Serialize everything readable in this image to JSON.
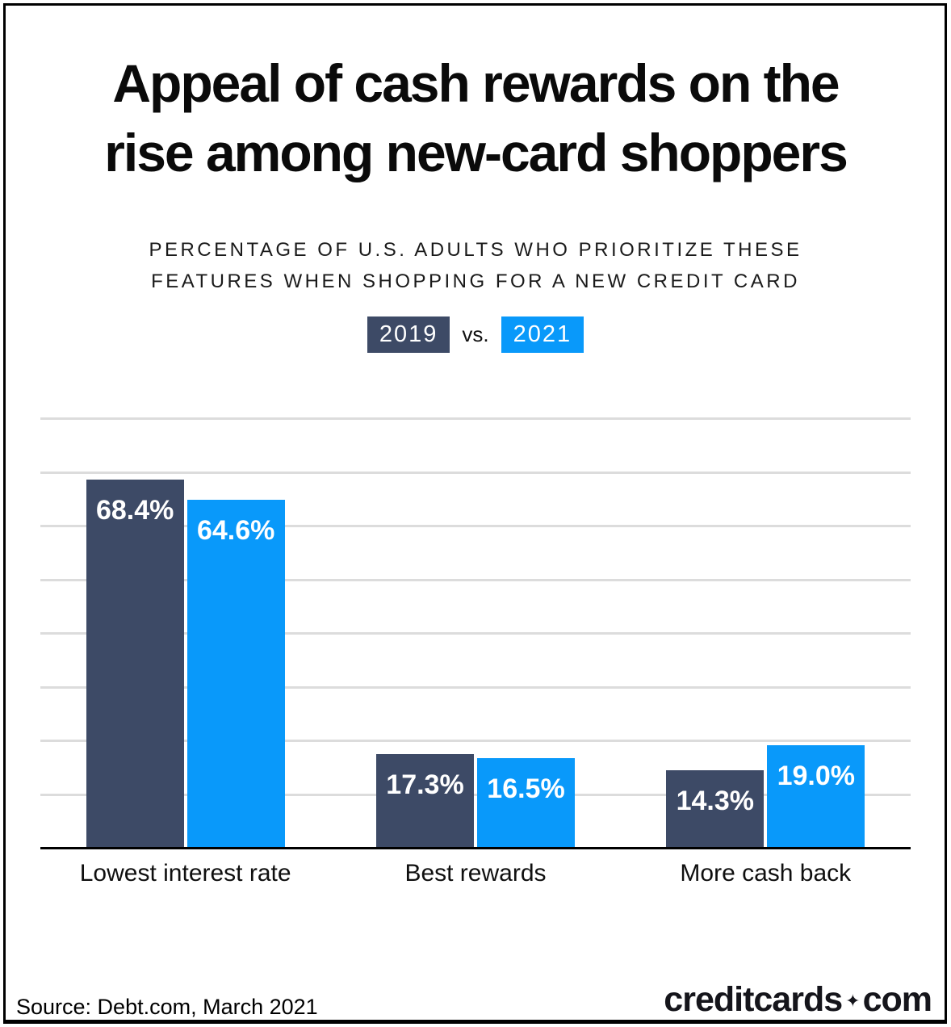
{
  "title": {
    "line1": "Appeal of cash rewards on the",
    "line2": "rise among new-card shoppers"
  },
  "subtitle": {
    "line1": "PERCENTAGE OF U.S. ADULTS WHO PRIORITIZE THESE",
    "line2": "FEATURES WHEN SHOPPING FOR A NEW CREDIT CARD"
  },
  "legend": {
    "year_2019": "2019",
    "separator": "vs.",
    "year_2021": "2021"
  },
  "colors": {
    "navy_2019": "#3d4a66",
    "blue_2021": "#0999fa",
    "gridline": "#dcdcdc",
    "axis": "#000000",
    "background": "#ffffff"
  },
  "chart_data": {
    "type": "bar",
    "categories": [
      "Lowest interest rate",
      "Best rewards",
      "More cash back"
    ],
    "series": [
      {
        "name": "2019",
        "color": "#3d4a66",
        "values": [
          68.4,
          17.3,
          14.3
        ]
      },
      {
        "name": "2021",
        "color": "#0999fa",
        "values": [
          64.6,
          16.5,
          19.0
        ]
      }
    ],
    "value_labels": [
      [
        "68.4%",
        "64.6%"
      ],
      [
        "17.3%",
        "16.5%"
      ],
      [
        "14.3%",
        "19.0%"
      ]
    ],
    "title": "Appeal of cash rewards on the rise among new-card shoppers",
    "subtitle": "Percentage of U.S. adults who prioritize these features when shopping for a new credit card",
    "xlabel": "",
    "ylabel": "",
    "ylim": [
      0,
      80
    ],
    "gridlines": "horizontal, every 10 up to 80",
    "legend_position": "top-center",
    "value_label_position": "inside-top, white"
  },
  "footer": {
    "source": "Source: Debt.com, March 2021",
    "brand": {
      "part1": "creditcards",
      "diamond": "✦",
      "part2": "com"
    }
  }
}
